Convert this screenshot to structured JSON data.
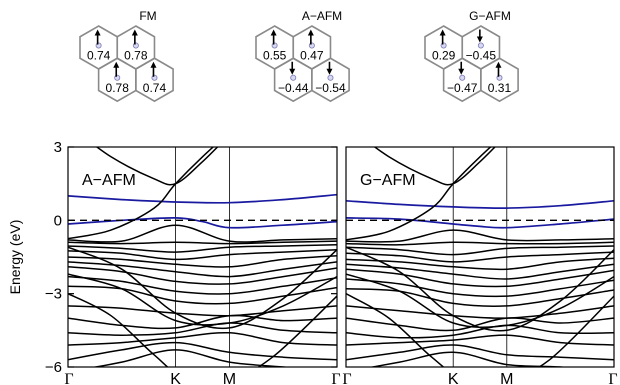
{
  "magnetic_configs": [
    {
      "label": "FM",
      "sites": [
        {
          "spin": "up",
          "moment": "0.74"
        },
        {
          "spin": "up",
          "moment": "0.78"
        },
        {
          "spin": "up",
          "moment": "0.78"
        },
        {
          "spin": "up",
          "moment": "0.74"
        }
      ]
    },
    {
      "label": "A−AFM",
      "sites": [
        {
          "spin": "up",
          "moment": "0.55"
        },
        {
          "spin": "up",
          "moment": "0.47"
        },
        {
          "spin": "down",
          "moment": "−0.44"
        },
        {
          "spin": "down",
          "moment": "−0.54"
        }
      ]
    },
    {
      "label": "G−AFM",
      "sites": [
        {
          "spin": "up",
          "moment": "0.29"
        },
        {
          "spin": "down",
          "moment": "−0.45"
        },
        {
          "spin": "down",
          "moment": "−0.47"
        },
        {
          "spin": "up",
          "moment": "0.31"
        }
      ]
    }
  ],
  "chart_data": [
    {
      "type": "line",
      "title": "A−AFM",
      "ylabel": "Energy (eV)",
      "ylim": [
        -6,
        3
      ],
      "yticks": [
        "3",
        "0",
        "−3",
        "−6"
      ],
      "ytick_values": [
        3,
        0,
        -3,
        -6
      ],
      "kpath_labels": [
        "Γ",
        "K",
        "M",
        "Γ"
      ],
      "kpath_positions": [
        0,
        1,
        1.5,
        2.5
      ],
      "fermi_level": 0,
      "series": [
        {
          "color": "#1a1aa0",
          "x": [
            0,
            0.5,
            1.0,
            1.5,
            2.0,
            2.5
          ],
          "y": [
            1.0,
            0.85,
            0.75,
            0.72,
            0.85,
            1.05
          ]
        },
        {
          "color": "#1a1aa0",
          "x": [
            0,
            0.5,
            1.0,
            1.25,
            1.5,
            2.0,
            2.5
          ],
          "y": [
            -0.15,
            0.0,
            0.1,
            -0.05,
            -0.3,
            -0.2,
            -0.05
          ]
        },
        {
          "color": "#000000",
          "x": [
            0,
            0.4,
            0.8,
            1.0,
            1.25,
            1.5
          ],
          "y": [
            3.9,
            2.6,
            1.7,
            1.5,
            2.4,
            3.5
          ]
        },
        {
          "color": "#000000",
          "x": [
            0,
            0.4,
            0.8,
            1.0,
            1.25,
            1.5
          ],
          "y": [
            -0.75,
            -0.4,
            0.5,
            1.5,
            2.6,
            3.6
          ]
        },
        {
          "color": "#000000",
          "x": [
            0,
            0.5,
            1.0,
            1.5,
            2.0,
            2.5
          ],
          "y": [
            -0.8,
            -0.85,
            -0.2,
            -0.85,
            -0.8,
            -0.75
          ]
        },
        {
          "color": "#000000",
          "x": [
            0,
            0.5,
            1.0,
            1.5,
            2.0,
            2.5
          ],
          "y": [
            -0.9,
            -0.95,
            -0.9,
            -0.95,
            -0.9,
            -0.85
          ]
        },
        {
          "color": "#000000",
          "x": [
            0,
            0.5,
            1.0,
            1.5,
            2.0,
            2.5
          ],
          "y": [
            -1.05,
            -1.15,
            -1.3,
            -1.1,
            -1.05,
            -1.0
          ]
        },
        {
          "color": "#000000",
          "x": [
            0,
            0.5,
            1.0,
            1.5,
            2.0,
            2.5
          ],
          "y": [
            -1.25,
            -1.35,
            -1.6,
            -1.4,
            -1.3,
            -1.2
          ]
        },
        {
          "color": "#000000",
          "x": [
            0,
            0.5,
            1.0,
            1.5,
            2.0,
            2.5
          ],
          "y": [
            -1.5,
            -1.6,
            -1.8,
            -1.9,
            -1.6,
            -1.45
          ]
        },
        {
          "color": "#000000",
          "x": [
            0,
            0.5,
            1.0,
            1.5,
            2.0,
            2.5
          ],
          "y": [
            -1.7,
            -1.85,
            -2.1,
            -2.3,
            -2.0,
            -1.7
          ]
        },
        {
          "color": "#000000",
          "x": [
            0,
            0.5,
            1.0,
            1.5,
            2.0,
            2.5
          ],
          "y": [
            -1.9,
            -2.1,
            -2.5,
            -2.6,
            -2.3,
            -1.95
          ]
        },
        {
          "color": "#000000",
          "x": [
            0,
            0.5,
            1.0,
            1.5,
            2.0,
            2.5
          ],
          "y": [
            -2.3,
            -2.5,
            -2.9,
            -3.0,
            -2.7,
            -2.35
          ]
        },
        {
          "color": "#000000",
          "x": [
            0,
            0.5,
            1.0,
            1.5,
            2.0,
            2.5
          ],
          "y": [
            -2.7,
            -2.8,
            -3.3,
            -3.4,
            -3.1,
            -2.75
          ]
        },
        {
          "color": "#000000",
          "x": [
            0,
            0.5,
            1.0,
            1.5,
            2.0,
            2.5
          ],
          "y": [
            -3.5,
            -3.6,
            -3.8,
            -3.9,
            -3.7,
            -3.5
          ]
        },
        {
          "color": "#000000",
          "x": [
            0,
            0.5,
            1.0,
            1.5,
            2.0,
            2.5
          ],
          "y": [
            -2.2,
            -2.8,
            -4.1,
            -4.2,
            -3.5,
            -2.3
          ]
        },
        {
          "color": "#000000",
          "x": [
            0,
            0.5,
            1.0,
            1.5,
            2.0,
            2.5
          ],
          "y": [
            -1.1,
            -2.0,
            -3.8,
            -4.4,
            -3.2,
            -1.2
          ]
        },
        {
          "color": "#000000",
          "x": [
            0,
            0.5,
            1.0,
            1.5,
            2.0,
            2.5
          ],
          "y": [
            -4.0,
            -4.3,
            -4.4,
            -3.9,
            -4.1,
            -4.0
          ]
        },
        {
          "color": "#000000",
          "x": [
            0,
            0.5,
            1.0,
            1.5,
            2.0,
            2.5
          ],
          "y": [
            -4.6,
            -4.7,
            -4.6,
            -4.2,
            -4.5,
            -4.6
          ]
        },
        {
          "color": "#000000",
          "x": [
            0,
            0.5,
            1.0,
            1.5,
            2.0,
            2.5
          ],
          "y": [
            -5.1,
            -5.0,
            -4.8,
            -4.6,
            -5.0,
            -5.1
          ]
        },
        {
          "color": "#000000",
          "x": [
            0,
            0.5,
            1.0,
            1.5,
            2.0,
            2.5
          ],
          "y": [
            -5.7,
            -5.3,
            -5.0,
            -5.4,
            -5.6,
            -5.7
          ]
        },
        {
          "color": "#000000",
          "x": [
            0,
            0.4,
            0.8,
            1.1,
            1.5,
            1.9,
            2.5
          ],
          "y": [
            -3.0,
            -3.9,
            -5.5,
            -6.5,
            -6.5,
            -5.6,
            -3.1
          ]
        },
        {
          "color": "#000000",
          "x": [
            0,
            0.5,
            1.0,
            1.5,
            2.0,
            2.5
          ],
          "y": [
            -6.2,
            -5.8,
            -5.3,
            -5.8,
            -6.0,
            -6.2
          ]
        }
      ]
    },
    {
      "type": "line",
      "title": "G−AFM",
      "ylim": [
        -6,
        3
      ],
      "kpath_labels": [
        "Γ",
        "K",
        "M",
        "Γ"
      ],
      "kpath_positions": [
        0,
        1,
        1.5,
        2.5
      ],
      "fermi_level": 0,
      "series": [
        {
          "color": "#1a1aa0",
          "x": [
            0,
            0.5,
            1.0,
            1.5,
            2.0,
            2.5
          ],
          "y": [
            0.8,
            0.65,
            0.55,
            0.5,
            0.6,
            0.8
          ]
        },
        {
          "color": "#1a1aa0",
          "x": [
            0,
            0.5,
            1.0,
            1.25,
            1.5,
            2.0,
            2.5
          ],
          "y": [
            0.1,
            0.05,
            -0.15,
            -0.25,
            -0.3,
            -0.15,
            0.05
          ]
        },
        {
          "color": "#000000",
          "x": [
            0,
            0.4,
            0.8,
            1.0,
            1.25,
            1.5
          ],
          "y": [
            3.9,
            2.6,
            1.7,
            1.5,
            2.4,
            3.5
          ]
        },
        {
          "color": "#000000",
          "x": [
            0,
            0.4,
            0.8,
            1.0,
            1.25,
            1.5
          ],
          "y": [
            -0.8,
            -0.45,
            0.5,
            1.5,
            2.6,
            3.6
          ]
        },
        {
          "color": "#000000",
          "x": [
            0,
            0.5,
            1.0,
            1.5,
            2.0,
            2.5
          ],
          "y": [
            -0.85,
            -0.85,
            -0.4,
            -0.8,
            -0.8,
            -0.75
          ]
        },
        {
          "color": "#000000",
          "x": [
            0,
            0.5,
            1.0,
            1.5,
            2.0,
            2.5
          ],
          "y": [
            -0.95,
            -1.0,
            -0.9,
            -0.95,
            -0.95,
            -0.9
          ]
        },
        {
          "color": "#000000",
          "x": [
            0,
            0.5,
            1.0,
            1.5,
            2.0,
            2.5
          ],
          "y": [
            -1.1,
            -1.2,
            -1.4,
            -1.15,
            -1.1,
            -1.05
          ]
        },
        {
          "color": "#000000",
          "x": [
            0,
            0.5,
            1.0,
            1.5,
            2.0,
            2.5
          ],
          "y": [
            -1.35,
            -1.45,
            -1.7,
            -1.5,
            -1.4,
            -1.3
          ]
        },
        {
          "color": "#000000",
          "x": [
            0,
            0.5,
            1.0,
            1.5,
            2.0,
            2.5
          ],
          "y": [
            -1.6,
            -1.7,
            -1.9,
            -2.0,
            -1.7,
            -1.55
          ]
        },
        {
          "color": "#000000",
          "x": [
            0,
            0.5,
            1.0,
            1.5,
            2.0,
            2.5
          ],
          "y": [
            -1.8,
            -1.95,
            -2.2,
            -2.4,
            -2.1,
            -1.8
          ]
        },
        {
          "color": "#000000",
          "x": [
            0,
            0.5,
            1.0,
            1.5,
            2.0,
            2.5
          ],
          "y": [
            -2.0,
            -2.2,
            -2.6,
            -2.7,
            -2.4,
            -2.05
          ]
        },
        {
          "color": "#000000",
          "x": [
            0,
            0.5,
            1.0,
            1.5,
            2.0,
            2.5
          ],
          "y": [
            -2.4,
            -2.6,
            -3.0,
            -3.1,
            -2.8,
            -2.45
          ]
        },
        {
          "color": "#000000",
          "x": [
            0,
            0.5,
            1.0,
            1.5,
            2.0,
            2.5
          ],
          "y": [
            -2.8,
            -2.9,
            -3.4,
            -3.5,
            -3.2,
            -2.85
          ]
        },
        {
          "color": "#000000",
          "x": [
            0,
            0.5,
            1.0,
            1.5,
            2.0,
            2.5
          ],
          "y": [
            -3.5,
            -3.7,
            -3.9,
            -4.0,
            -3.8,
            -3.5
          ]
        },
        {
          "color": "#000000",
          "x": [
            0,
            0.5,
            1.0,
            1.5,
            2.0,
            2.5
          ],
          "y": [
            -2.2,
            -2.9,
            -4.2,
            -4.3,
            -3.6,
            -2.3
          ]
        },
        {
          "color": "#000000",
          "x": [
            0,
            0.5,
            1.0,
            1.5,
            2.0,
            2.5
          ],
          "y": [
            -1.1,
            -2.1,
            -3.9,
            -4.5,
            -3.3,
            -1.2
          ]
        },
        {
          "color": "#000000",
          "x": [
            0,
            0.5,
            1.0,
            1.5,
            2.0,
            2.5
          ],
          "y": [
            -4.0,
            -4.3,
            -4.5,
            -4.0,
            -4.2,
            -4.0
          ]
        },
        {
          "color": "#000000",
          "x": [
            0,
            0.5,
            1.0,
            1.5,
            2.0,
            2.5
          ],
          "y": [
            -4.6,
            -4.8,
            -4.7,
            -4.3,
            -4.6,
            -4.6
          ]
        },
        {
          "color": "#000000",
          "x": [
            0,
            0.5,
            1.0,
            1.5,
            2.0,
            2.5
          ],
          "y": [
            -5.1,
            -5.0,
            -4.9,
            -4.7,
            -5.0,
            -5.1
          ]
        },
        {
          "color": "#000000",
          "x": [
            0,
            0.5,
            1.0,
            1.5,
            2.0,
            2.5
          ],
          "y": [
            -5.7,
            -5.4,
            -5.1,
            -5.5,
            -5.6,
            -5.7
          ]
        },
        {
          "color": "#000000",
          "x": [
            0,
            0.4,
            0.8,
            1.1,
            1.5,
            1.9,
            2.5
          ],
          "y": [
            -3.0,
            -4.0,
            -5.6,
            -6.5,
            -6.5,
            -5.7,
            -3.1
          ]
        },
        {
          "color": "#000000",
          "x": [
            0,
            0.5,
            1.0,
            1.5,
            2.0,
            2.5
          ],
          "y": [
            -6.2,
            -5.8,
            -5.4,
            -5.9,
            -6.0,
            -6.2
          ]
        }
      ]
    }
  ]
}
